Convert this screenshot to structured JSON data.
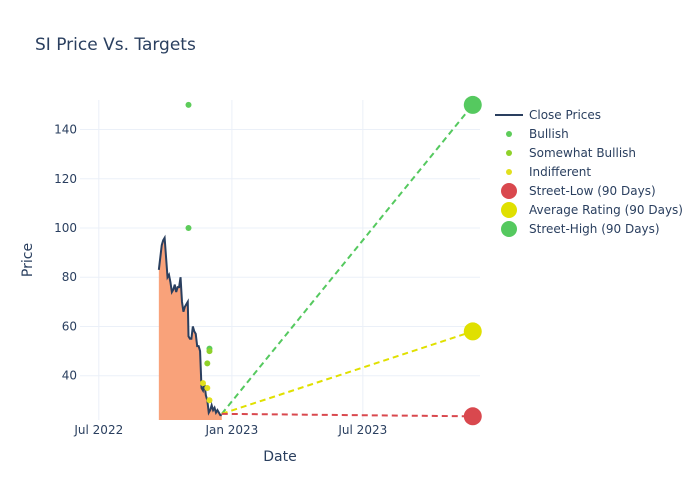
{
  "chart_data": {
    "type": "line",
    "title": "SI Price Vs. Targets",
    "xlabel": "Date",
    "ylabel": "Price",
    "x_range": [
      "2022-06-05",
      "2023-12-10"
    ],
    "y_range": [
      22,
      152
    ],
    "x_ticks": [
      {
        "date": "2022-07-01",
        "label": "Jul 2022"
      },
      {
        "date": "2023-01-01",
        "label": "Jan 2023"
      },
      {
        "date": "2023-07-01",
        "label": "Jul 2023"
      }
    ],
    "y_ticks": [
      40,
      60,
      80,
      100,
      120,
      140
    ],
    "grid": true,
    "legend_position": "right",
    "colors": {
      "close_line": "#2a3f5f",
      "close_fill": "#f9a27a",
      "bullish": "#5dcc5a",
      "somewhat_bullish": "#8fd12a",
      "indifferent": "#e1e01d",
      "low": "#d9484e",
      "average": "#e0e000",
      "high": "#55c95f"
    },
    "legend": [
      {
        "key": "close",
        "label": "Close Prices",
        "symbol": "line"
      },
      {
        "key": "bullish",
        "label": "Bullish",
        "symbol": "small-dot"
      },
      {
        "key": "somewhat_bullish",
        "label": "Somewhat Bullish",
        "symbol": "small-dot"
      },
      {
        "key": "indifferent",
        "label": "Indifferent",
        "symbol": "small-dot"
      },
      {
        "key": "low",
        "label": "Street-Low (90 Days)",
        "symbol": "big-dot"
      },
      {
        "key": "average",
        "label": "Average Rating (90 Days)",
        "symbol": "big-dot"
      },
      {
        "key": "high",
        "label": "Street-High (90 Days)",
        "symbol": "big-dot"
      }
    ],
    "close_prices": [
      [
        "2022-09-22",
        83
      ],
      [
        "2022-09-24",
        88
      ],
      [
        "2022-09-26",
        93
      ],
      [
        "2022-09-28",
        95
      ],
      [
        "2022-09-30",
        96
      ],
      [
        "2022-10-02",
        88
      ],
      [
        "2022-10-04",
        80
      ],
      [
        "2022-10-06",
        81
      ],
      [
        "2022-10-08",
        78
      ],
      [
        "2022-10-10",
        74
      ],
      [
        "2022-10-12",
        75
      ],
      [
        "2022-10-14",
        77
      ],
      [
        "2022-10-16",
        74
      ],
      [
        "2022-10-18",
        76
      ],
      [
        "2022-10-20",
        76
      ],
      [
        "2022-10-22",
        80
      ],
      [
        "2022-10-24",
        70
      ],
      [
        "2022-10-26",
        66
      ],
      [
        "2022-10-28",
        68
      ],
      [
        "2022-10-30",
        69
      ],
      [
        "2022-11-01",
        70
      ],
      [
        "2022-11-02",
        56
      ],
      [
        "2022-11-04",
        55
      ],
      [
        "2022-11-06",
        55
      ],
      [
        "2022-11-08",
        60
      ],
      [
        "2022-11-10",
        58
      ],
      [
        "2022-11-12",
        57
      ],
      [
        "2022-11-14",
        52
      ],
      [
        "2022-11-16",
        52
      ],
      [
        "2022-11-18",
        50
      ],
      [
        "2022-11-20",
        35
      ],
      [
        "2022-11-22",
        34
      ],
      [
        "2022-11-24",
        37
      ],
      [
        "2022-11-26",
        32
      ],
      [
        "2022-11-28",
        30
      ],
      [
        "2022-11-30",
        25
      ],
      [
        "2022-12-02",
        26
      ],
      [
        "2022-12-04",
        28
      ],
      [
        "2022-12-06",
        26
      ],
      [
        "2022-12-08",
        27
      ],
      [
        "2022-12-10",
        25
      ],
      [
        "2022-12-12",
        26
      ],
      [
        "2022-12-14",
        25
      ],
      [
        "2022-12-16",
        24
      ],
      [
        "2022-12-18",
        24
      ]
    ],
    "ratings": [
      {
        "category": "bullish",
        "date": "2022-11-02",
        "price": 150
      },
      {
        "category": "bullish",
        "date": "2022-11-02",
        "price": 100
      },
      {
        "category": "bullish",
        "date": "2022-12-01",
        "price": 51
      },
      {
        "category": "somewhat_bullish",
        "date": "2022-12-01",
        "price": 50
      },
      {
        "category": "somewhat_bullish",
        "date": "2022-11-28",
        "price": 45
      },
      {
        "category": "indifferent",
        "date": "2022-11-22",
        "price": 37
      },
      {
        "category": "indifferent",
        "date": "2022-11-28",
        "price": 35
      },
      {
        "category": "indifferent",
        "date": "2022-12-01",
        "price": 30
      }
    ],
    "targets": {
      "start_date": "2022-12-18",
      "start_price": 24.5,
      "end_date": "2023-11-30",
      "low": 23.5,
      "average": 58,
      "high": 150
    }
  }
}
